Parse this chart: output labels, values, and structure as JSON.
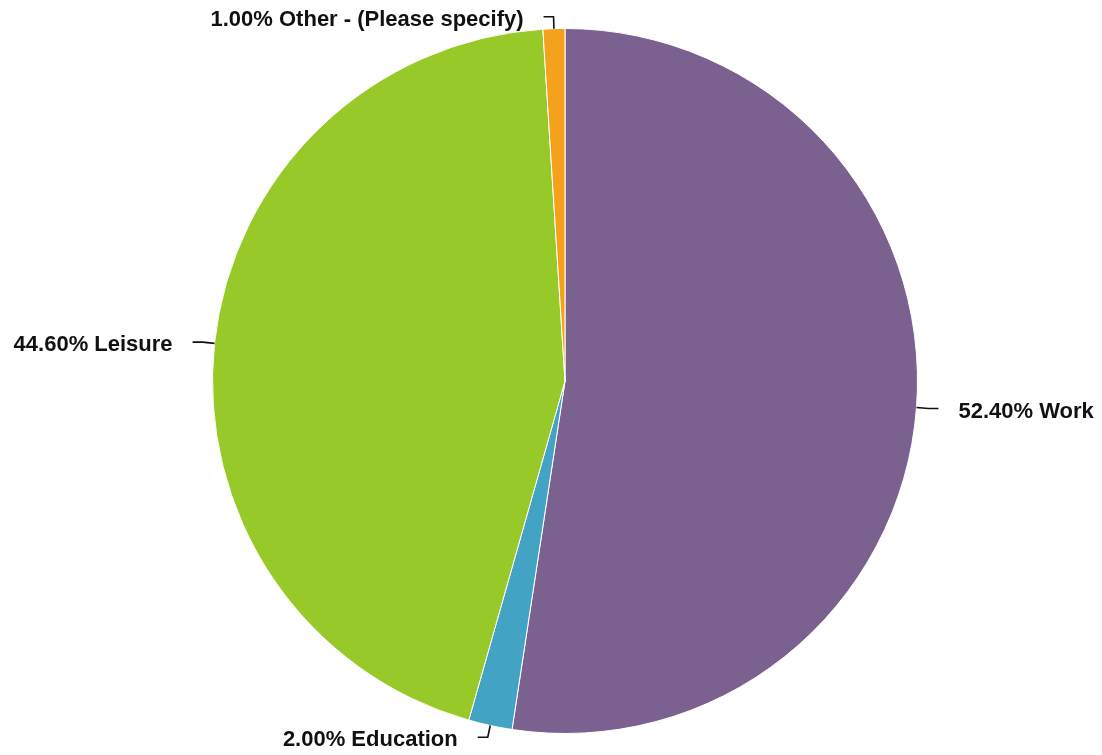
{
  "chart_data": {
    "type": "pie",
    "categories": [
      "Work",
      "Education",
      "Leisure",
      "Other - (Please specify)"
    ],
    "values": [
      52.4,
      2.0,
      44.6,
      1.0
    ],
    "colors": [
      "#7b6190",
      "#42a3c4",
      "#97c928",
      "#f4a21c"
    ],
    "value_labels": [
      "52.40%",
      "2.00%",
      "44.60%",
      "1.00%"
    ]
  }
}
